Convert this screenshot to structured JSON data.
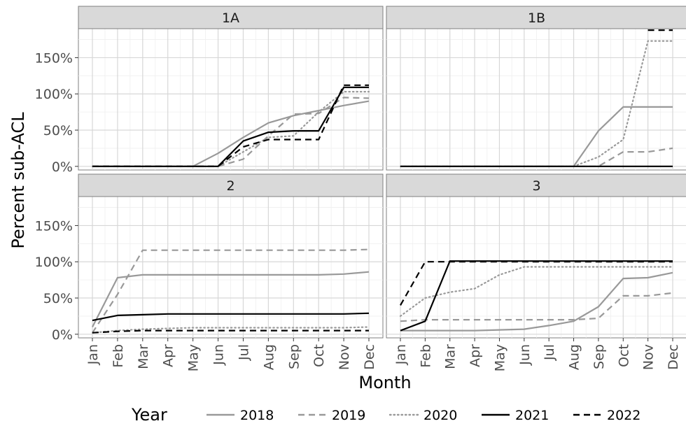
{
  "chart_data": {
    "type": "line",
    "facets": [
      "1A",
      "1B",
      "2",
      "3"
    ],
    "categories": [
      "Jan",
      "Feb",
      "Mar",
      "Apr",
      "May",
      "Jun",
      "Jul",
      "Aug",
      "Sep",
      "Oct",
      "Nov",
      "Dec"
    ],
    "xlabel": "Month",
    "ylabel": "Percent sub-ACL",
    "ylim": [
      -5,
      190
    ],
    "yticks": [
      0,
      50,
      100,
      150
    ],
    "ytick_labels": [
      "0%",
      "50%",
      "100%",
      "150%"
    ],
    "grid": true,
    "legend": {
      "title": "Year",
      "position": "bottom",
      "entries": [
        {
          "name": "2018",
          "color": "#999999",
          "dash": "solid"
        },
        {
          "name": "2019",
          "color": "#999999",
          "dash": "dashed"
        },
        {
          "name": "2020",
          "color": "#999999",
          "dash": "dotted"
        },
        {
          "name": "2021",
          "color": "#000000",
          "dash": "solid"
        },
        {
          "name": "2022",
          "color": "#000000",
          "dash": "dashed"
        }
      ]
    },
    "panels": [
      {
        "label": "1A",
        "series": [
          {
            "name": "2018",
            "values": [
              0,
              0,
              0,
              0,
              0,
              18,
              40,
              60,
              70,
              77,
              84,
              90
            ]
          },
          {
            "name": "2019",
            "values": [
              0,
              0,
              0,
              0,
              0,
              0,
              10,
              42,
              72,
              73,
              95,
              94
            ]
          },
          {
            "name": "2020",
            "values": [
              0,
              0,
              0,
              0,
              0,
              0,
              20,
              40,
              42,
              75,
              103,
              103
            ]
          },
          {
            "name": "2021",
            "values": [
              0,
              0,
              0,
              0,
              0,
              0,
              35,
              47,
              49,
              49,
              109,
              109
            ]
          },
          {
            "name": "2022",
            "values": [
              0,
              0,
              0,
              0,
              0,
              0,
              27,
              37,
              37,
              37,
              112,
              112
            ]
          }
        ]
      },
      {
        "label": "1B",
        "series": [
          {
            "name": "2018",
            "values": [
              0,
              0,
              0,
              0,
              0,
              0,
              0,
              0,
              49,
              82,
              82,
              82
            ]
          },
          {
            "name": "2019",
            "values": [
              0,
              0,
              0,
              0,
              0,
              0,
              0,
              0,
              0,
              20,
              20,
              25
            ]
          },
          {
            "name": "2020",
            "values": [
              0,
              0,
              0,
              0,
              0,
              0,
              0,
              0,
              13,
              37,
              173,
              173
            ]
          },
          {
            "name": "2021",
            "values": [
              0,
              0,
              0,
              0,
              0,
              0,
              0,
              0,
              0,
              0,
              0,
              0
            ]
          },
          {
            "name": "2022",
            "values": [
              null,
              null,
              null,
              null,
              null,
              null,
              null,
              null,
              null,
              null,
              188,
              188
            ]
          }
        ]
      },
      {
        "label": "2",
        "series": [
          {
            "name": "2018",
            "values": [
              10,
              78,
              82,
              82,
              82,
              82,
              82,
              82,
              82,
              82,
              83,
              86
            ]
          },
          {
            "name": "2019",
            "values": [
              2,
              55,
              116,
              116,
              116,
              116,
              116,
              116,
              116,
              116,
              116,
              117
            ]
          },
          {
            "name": "2020",
            "values": [
              2,
              5,
              7,
              8,
              9,
              9,
              9,
              9,
              9,
              9,
              9,
              10
            ]
          },
          {
            "name": "2021",
            "values": [
              19,
              26,
              27,
              28,
              28,
              28,
              28,
              28,
              28,
              28,
              28,
              29
            ]
          },
          {
            "name": "2022",
            "values": [
              2,
              4,
              5,
              5,
              5,
              5,
              5,
              5,
              5,
              5,
              5,
              5
            ]
          }
        ]
      },
      {
        "label": "3",
        "series": [
          {
            "name": "2018",
            "values": [
              5,
              5,
              5,
              5,
              6,
              7,
              12,
              18,
              38,
              77,
              78,
              85
            ]
          },
          {
            "name": "2019",
            "values": [
              18,
              20,
              20,
              20,
              20,
              20,
              20,
              20,
              22,
              53,
              53,
              57
            ]
          },
          {
            "name": "2020",
            "values": [
              25,
              50,
              58,
              63,
              82,
              93,
              93,
              93,
              93,
              93,
              93,
              93
            ]
          },
          {
            "name": "2021",
            "values": [
              5,
              18,
              101,
              101,
              101,
              101,
              101,
              101,
              101,
              101,
              101,
              101
            ]
          },
          {
            "name": "2022",
            "values": [
              40,
              100,
              100,
              100,
              100,
              100,
              100,
              100,
              100,
              100,
              100,
              100
            ]
          }
        ]
      }
    ]
  }
}
